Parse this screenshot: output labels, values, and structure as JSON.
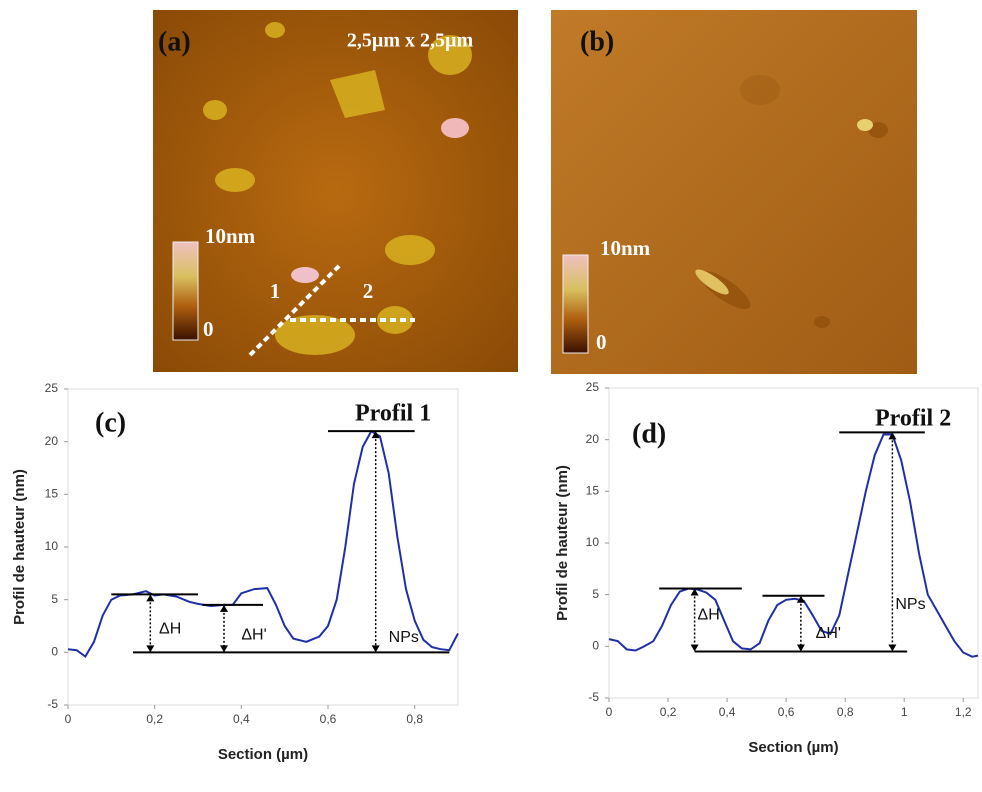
{
  "images": [
    {
      "label": "(a)",
      "size": "2,5µm x 2,5µm",
      "scale_max": "10nm",
      "scale_min": "0",
      "line_labels": [
        "1",
        "2"
      ]
    },
    {
      "label": "(b)",
      "scale_max": "10nm",
      "scale_min": "0"
    }
  ],
  "chart_data": [
    {
      "type": "line",
      "title": "Profil 1",
      "panel": "(c)",
      "x_label": "Section (µm)",
      "y_label": "Profil de hauteur (nm)",
      "color": "#1f2fa8",
      "annotations": [
        "ΔH",
        "ΔH'",
        "NPs"
      ],
      "x": [
        0,
        0.02,
        0.04,
        0.06,
        0.08,
        0.1,
        0.12,
        0.15,
        0.18,
        0.2,
        0.22,
        0.25,
        0.28,
        0.3,
        0.33,
        0.36,
        0.38,
        0.4,
        0.43,
        0.46,
        0.48,
        0.5,
        0.52,
        0.55,
        0.58,
        0.6,
        0.62,
        0.64,
        0.66,
        0.68,
        0.7,
        0.72,
        0.74,
        0.76,
        0.78,
        0.8,
        0.82,
        0.84,
        0.86,
        0.88,
        0.9
      ],
      "values": [
        0.3,
        0.2,
        -0.4,
        1,
        3.5,
        5,
        5.4,
        5.5,
        5.8,
        5.4,
        5.5,
        5.3,
        4.8,
        4.6,
        4.4,
        4.5,
        4.5,
        5.6,
        6,
        6.1,
        4.5,
        2.5,
        1.3,
        1,
        1.5,
        2.5,
        5,
        10,
        16,
        19.5,
        21,
        20.5,
        17,
        11,
        6,
        3,
        1.2,
        0.5,
        0.3,
        0.2,
        1.8
      ],
      "xlim": [
        0,
        0.9
      ],
      "ylim": [
        -5,
        25
      ],
      "xticks": [
        0,
        {
          "value": 0.2,
          "label": "0,2"
        },
        {
          "value": 0.4,
          "label": "0,4"
        },
        {
          "value": 0.6,
          "label": "0,6"
        },
        {
          "value": 0.8,
          "label": "0,8"
        }
      ],
      "yticks": [
        -5,
        0,
        5,
        10,
        15,
        20,
        25
      ]
    },
    {
      "type": "line",
      "title": "Profil 2",
      "panel": "(d)",
      "x_label": "Section (µm)",
      "y_label": "Profil de hauteur (nm)",
      "color": "#1f2fa8",
      "annotations": [
        "ΔH",
        "ΔH'",
        "NPs"
      ],
      "x": [
        0,
        0.03,
        0.06,
        0.09,
        0.12,
        0.15,
        0.18,
        0.21,
        0.24,
        0.27,
        0.3,
        0.33,
        0.36,
        0.39,
        0.42,
        0.45,
        0.48,
        0.51,
        0.54,
        0.57,
        0.6,
        0.63,
        0.66,
        0.69,
        0.72,
        0.75,
        0.78,
        0.81,
        0.84,
        0.87,
        0.9,
        0.93,
        0.96,
        0.99,
        1.02,
        1.05,
        1.08,
        1.11,
        1.14,
        1.17,
        1.2,
        1.23,
        1.25
      ],
      "values": [
        0.7,
        0.5,
        -0.3,
        -0.4,
        0,
        0.5,
        2,
        4,
        5.3,
        5.6,
        5.5,
        5.2,
        4.5,
        2.5,
        0.5,
        -0.2,
        -0.3,
        0.3,
        2.5,
        4,
        4.5,
        4.6,
        4.4,
        3,
        1.5,
        1.2,
        3,
        7,
        11,
        15,
        18.5,
        20.5,
        20.5,
        18,
        14,
        9,
        5,
        3.5,
        2,
        0.5,
        -0.6,
        -1,
        -0.9
      ],
      "xlim": [
        0,
        1.25
      ],
      "ylim": [
        -5,
        25
      ],
      "xticks": [
        0,
        {
          "value": 0.2,
          "label": "0,2"
        },
        {
          "value": 0.4,
          "label": "0,4"
        },
        {
          "value": 0.6,
          "label": "0,6"
        },
        {
          "value": 0.8,
          "label": "0,8"
        },
        1,
        {
          "value": 1.2,
          "label": "1,2"
        }
      ],
      "yticks": [
        -5,
        0,
        5,
        10,
        15,
        20,
        25
      ]
    }
  ]
}
